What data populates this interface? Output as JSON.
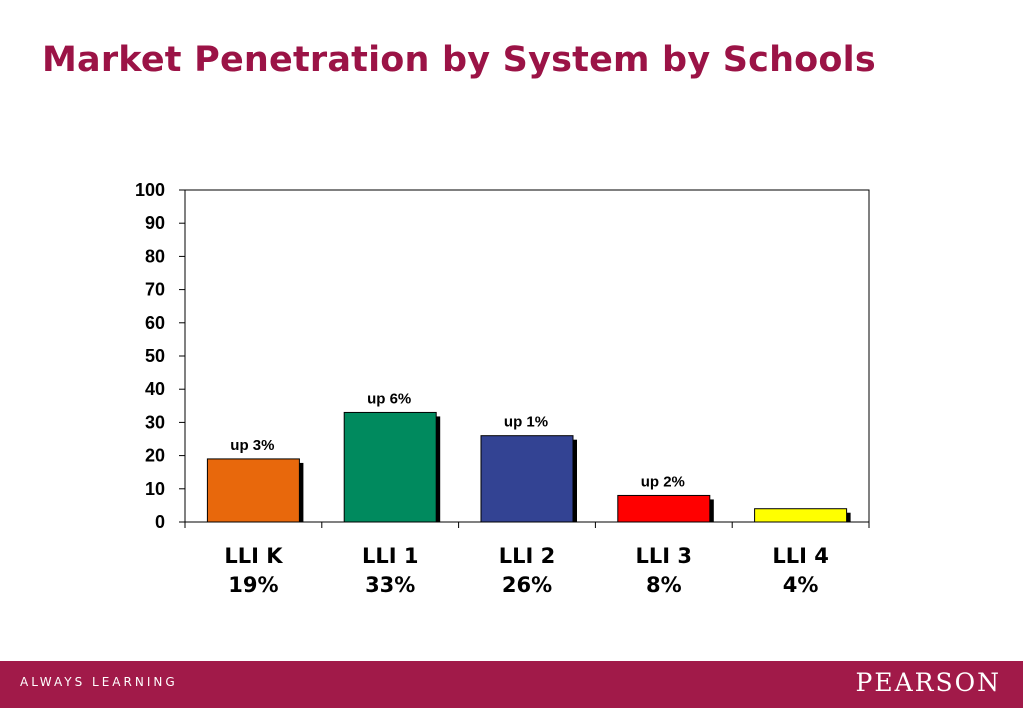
{
  "slide": {
    "title": "Market Penetration by System by Schools"
  },
  "chart_data": {
    "type": "bar",
    "categories": [
      "LLI K",
      "LLI 1",
      "LLI 2",
      "LLI 3",
      "LLI 4"
    ],
    "category_values": [
      "19%",
      "33%",
      "26%",
      "8%",
      "4%"
    ],
    "values": [
      19,
      33,
      26,
      8,
      4
    ],
    "annotations": [
      "up 3%",
      "up 6%",
      "up 1%",
      "up 2%",
      ""
    ],
    "bar_colors": [
      "#e8680c",
      "#008a5e",
      "#334393",
      "#ff0000",
      "#ffff00"
    ],
    "ylim": [
      0,
      100
    ],
    "yticks": [
      0,
      10,
      20,
      30,
      40,
      50,
      60,
      70,
      80,
      90,
      100
    ],
    "grid": false,
    "legend": "none"
  },
  "footer": {
    "tagline": "ALWAYS LEARNING",
    "brand": "PEARSON",
    "background": "#a11a49"
  },
  "colors": {
    "title": "#9b1346",
    "bar_shadow": "#000000"
  }
}
